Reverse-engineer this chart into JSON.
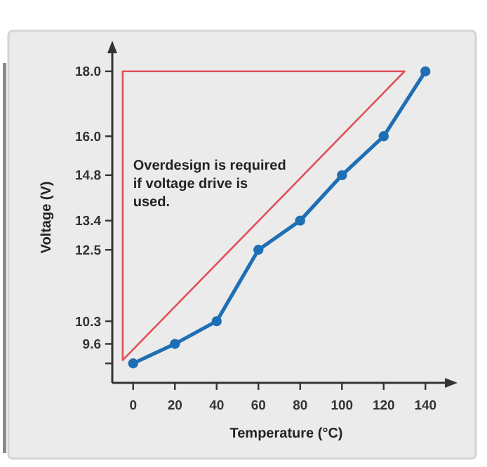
{
  "chart_data": {
    "type": "line",
    "xlabel": "Temperature (°C)",
    "ylabel": "Voltage (V)",
    "x": [
      0,
      20,
      40,
      60,
      80,
      100,
      120,
      140
    ],
    "series": [
      {
        "color": "#1f6fb5",
        "values": [
          9.0,
          9.6,
          10.3,
          12.5,
          13.4,
          14.8,
          16.0,
          18.0
        ],
        "marker": "circle"
      },
      {
        "color": "#e0505a",
        "x": [
          -5,
          130
        ],
        "values": [
          9.1,
          18.0
        ],
        "marker": "none"
      }
    ],
    "xlim": [
      -10,
      150
    ],
    "xticks": [
      0,
      20,
      40,
      60,
      80,
      100,
      120,
      140
    ],
    "ylim": [
      8.4,
      18.6
    ],
    "yticks": [
      {
        "value": 9.0,
        "label": null
      },
      9.6,
      10.3,
      12.5,
      13.4,
      14.8,
      {
        "value": 16,
        "label": "16.0"
      },
      {
        "value": 18,
        "label": "18.0"
      }
    ],
    "annotations": [
      "Overdesign is required if voltage drive is used."
    ],
    "grid": false
  }
}
